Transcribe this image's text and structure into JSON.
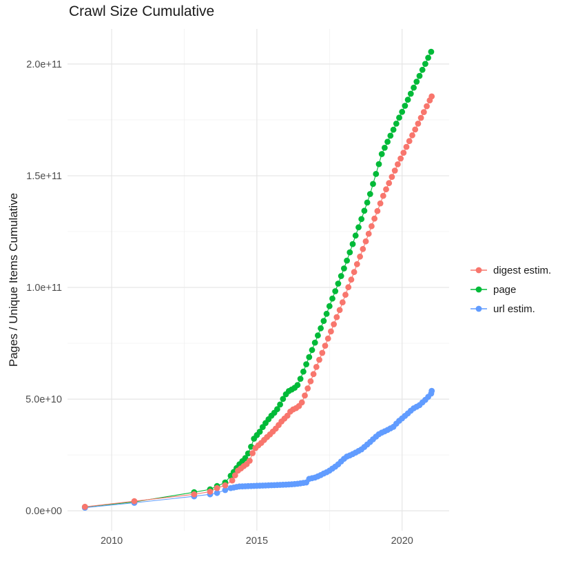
{
  "title": "Crawl Size Cumulative",
  "chart_data": {
    "type": "line",
    "title": "Crawl Size Cumulative",
    "xlabel": "",
    "ylabel": "Pages / Unique Items Cumulative",
    "value_scale": "1e9",
    "xlim": [
      2008.48,
      2021.62
    ],
    "ylim": [
      -8.9,
      215.7
    ],
    "x_ticks": [
      2010,
      2015,
      2020
    ],
    "x_tick_labels": [
      "2010",
      "2015",
      "2020"
    ],
    "x_minor_ticks": [
      2012.5,
      2017.5
    ],
    "y_ticks": [
      {
        "label": "0.0e+00",
        "value": 0
      },
      {
        "label": "5.0e+10",
        "value": 50
      },
      {
        "label": "1.0e+11",
        "value": 100
      },
      {
        "label": "1.5e+11",
        "value": 150
      },
      {
        "label": "2.0e+11",
        "value": 200
      }
    ],
    "y_minor_ticks": [
      25,
      75,
      125,
      175
    ],
    "grid": true,
    "legend_position": "right",
    "legend": [
      {
        "name": "digest estim.",
        "color": "#F8766D"
      },
      {
        "name": "page",
        "color": "#00BA38"
      },
      {
        "name": "url estim.",
        "color": "#619CFF"
      }
    ],
    "series": [
      {
        "name": "page",
        "color": "#00BA38",
        "points": [
          [
            2009.08,
            1.7
          ],
          [
            2010.78,
            4.0
          ],
          [
            2012.84,
            8.3
          ],
          [
            2013.39,
            9.6
          ],
          [
            2013.63,
            11.1
          ],
          [
            2013.91,
            12.7
          ],
          [
            2014.1,
            15.7
          ],
          [
            2014.2,
            17.4
          ],
          [
            2014.3,
            19.1
          ],
          [
            2014.4,
            20.8
          ],
          [
            2014.5,
            22.2
          ],
          [
            2014.6,
            23.6
          ],
          [
            2014.7,
            25.7
          ],
          [
            2014.8,
            28.7
          ],
          [
            2014.9,
            32.3
          ],
          [
            2015.0,
            33.9
          ],
          [
            2015.1,
            35.4
          ],
          [
            2015.2,
            37.5
          ],
          [
            2015.3,
            39.3
          ],
          [
            2015.4,
            41.0
          ],
          [
            2015.5,
            42.6
          ],
          [
            2015.6,
            43.9
          ],
          [
            2015.7,
            45.5
          ],
          [
            2015.8,
            47.6
          ],
          [
            2015.9,
            50.1
          ],
          [
            2016.0,
            52.2
          ],
          [
            2016.1,
            53.6
          ],
          [
            2016.2,
            54.3
          ],
          [
            2016.3,
            55.1
          ],
          [
            2016.4,
            56.3
          ],
          [
            2016.5,
            59.1
          ],
          [
            2016.6,
            62.3
          ],
          [
            2016.7,
            65.6
          ],
          [
            2016.8,
            68.8
          ],
          [
            2016.9,
            72.0
          ],
          [
            2017.0,
            75.3
          ],
          [
            2017.1,
            78.5
          ],
          [
            2017.2,
            81.7
          ],
          [
            2017.3,
            85.0
          ],
          [
            2017.4,
            88.2
          ],
          [
            2017.5,
            91.6
          ],
          [
            2017.6,
            95.0
          ],
          [
            2017.7,
            98.3
          ],
          [
            2017.8,
            101.7
          ],
          [
            2017.9,
            105.1
          ],
          [
            2018.0,
            108.5
          ],
          [
            2018.1,
            112.0
          ],
          [
            2018.2,
            115.7
          ],
          [
            2018.3,
            119.4
          ],
          [
            2018.4,
            123.2
          ],
          [
            2018.5,
            126.9
          ],
          [
            2018.6,
            130.6
          ],
          [
            2018.7,
            134.3
          ],
          [
            2018.8,
            138.0
          ],
          [
            2018.9,
            141.8
          ],
          [
            2019.0,
            146.3
          ],
          [
            2019.1,
            150.8
          ],
          [
            2019.2,
            155.2
          ],
          [
            2019.3,
            159.7
          ],
          [
            2019.4,
            162.5
          ],
          [
            2019.5,
            165.2
          ],
          [
            2019.6,
            167.9
          ],
          [
            2019.7,
            170.6
          ],
          [
            2019.8,
            173.3
          ],
          [
            2019.9,
            176.0
          ],
          [
            2020.0,
            178.6
          ],
          [
            2020.1,
            181.3
          ],
          [
            2020.2,
            184.0
          ],
          [
            2020.3,
            186.7
          ],
          [
            2020.4,
            189.4
          ],
          [
            2020.5,
            192.1
          ],
          [
            2020.6,
            194.7
          ],
          [
            2020.7,
            197.4
          ],
          [
            2020.8,
            200.1
          ],
          [
            2020.9,
            202.8
          ],
          [
            2021.0,
            205.5
          ]
        ]
      },
      {
        "name": "url estim.",
        "color": "#619CFF",
        "points": [
          [
            2009.08,
            1.4
          ],
          [
            2010.78,
            3.6
          ],
          [
            2012.84,
            6.5
          ],
          [
            2013.39,
            7.4
          ],
          [
            2013.63,
            8.0
          ],
          [
            2013.91,
            9.3
          ],
          [
            2014.1,
            10.2
          ],
          [
            2014.2,
            10.4
          ],
          [
            2014.3,
            10.7
          ],
          [
            2014.4,
            10.9
          ],
          [
            2014.5,
            10.95
          ],
          [
            2014.6,
            11.0
          ],
          [
            2014.7,
            11.05
          ],
          [
            2014.8,
            11.1
          ],
          [
            2014.9,
            11.15
          ],
          [
            2015.0,
            11.2
          ],
          [
            2015.1,
            11.25
          ],
          [
            2015.2,
            11.3
          ],
          [
            2015.3,
            11.35
          ],
          [
            2015.4,
            11.4
          ],
          [
            2015.5,
            11.45
          ],
          [
            2015.6,
            11.5
          ],
          [
            2015.7,
            11.56
          ],
          [
            2015.8,
            11.62
          ],
          [
            2015.9,
            11.68
          ],
          [
            2016.0,
            11.74
          ],
          [
            2016.1,
            11.8
          ],
          [
            2016.2,
            11.9
          ],
          [
            2016.3,
            12.0
          ],
          [
            2016.4,
            12.1
          ],
          [
            2016.5,
            12.3
          ],
          [
            2016.6,
            12.5
          ],
          [
            2016.7,
            12.7
          ],
          [
            2016.8,
            14.3
          ],
          [
            2016.9,
            14.6
          ],
          [
            2017.0,
            14.9
          ],
          [
            2017.1,
            15.4
          ],
          [
            2017.2,
            16.0
          ],
          [
            2017.3,
            16.7
          ],
          [
            2017.4,
            17.3
          ],
          [
            2017.5,
            18.0
          ],
          [
            2017.6,
            18.9
          ],
          [
            2017.7,
            19.8
          ],
          [
            2017.8,
            20.8
          ],
          [
            2017.9,
            22.1
          ],
          [
            2018.0,
            23.3
          ],
          [
            2018.1,
            24.3
          ],
          [
            2018.2,
            24.8
          ],
          [
            2018.3,
            25.4
          ],
          [
            2018.4,
            26.1
          ],
          [
            2018.5,
            26.8
          ],
          [
            2018.6,
            27.5
          ],
          [
            2018.7,
            28.6
          ],
          [
            2018.8,
            29.7
          ],
          [
            2018.9,
            30.8
          ],
          [
            2019.0,
            32.0
          ],
          [
            2019.1,
            33.2
          ],
          [
            2019.2,
            34.3
          ],
          [
            2019.3,
            35.0
          ],
          [
            2019.4,
            35.6
          ],
          [
            2019.5,
            36.2
          ],
          [
            2019.6,
            36.9
          ],
          [
            2019.7,
            37.6
          ],
          [
            2019.8,
            39.0
          ],
          [
            2019.9,
            40.3
          ],
          [
            2020.0,
            41.4
          ],
          [
            2020.1,
            42.5
          ],
          [
            2020.2,
            43.6
          ],
          [
            2020.3,
            44.8
          ],
          [
            2020.4,
            45.9
          ],
          [
            2020.5,
            46.6
          ],
          [
            2020.6,
            47.3
          ],
          [
            2020.7,
            48.5
          ],
          [
            2020.8,
            49.7
          ],
          [
            2020.9,
            51.0
          ],
          [
            2021.0,
            52.5
          ],
          [
            2021.02,
            53.7
          ]
        ]
      },
      {
        "name": "digest estim.",
        "color": "#F8766D",
        "points": [
          [
            2009.08,
            1.8
          ],
          [
            2010.78,
            4.3
          ],
          [
            2012.84,
            7.4
          ],
          [
            2013.39,
            8.6
          ],
          [
            2013.63,
            10.2
          ],
          [
            2013.91,
            11.4
          ],
          [
            2014.15,
            13.6
          ],
          [
            2014.25,
            15.9
          ],
          [
            2014.35,
            18.0
          ],
          [
            2014.45,
            19.0
          ],
          [
            2014.55,
            20.0
          ],
          [
            2014.65,
            20.9
          ],
          [
            2014.75,
            22.4
          ],
          [
            2014.85,
            25.8
          ],
          [
            2014.95,
            28.1
          ],
          [
            2015.05,
            29.3
          ],
          [
            2015.15,
            30.4
          ],
          [
            2015.25,
            31.7
          ],
          [
            2015.35,
            33.0
          ],
          [
            2015.45,
            34.2
          ],
          [
            2015.55,
            35.5
          ],
          [
            2015.65,
            36.8
          ],
          [
            2015.75,
            38.4
          ],
          [
            2015.85,
            40.0
          ],
          [
            2015.95,
            41.3
          ],
          [
            2016.05,
            42.6
          ],
          [
            2016.15,
            44.4
          ],
          [
            2016.25,
            45.4
          ],
          [
            2016.35,
            46.0
          ],
          [
            2016.45,
            46.9
          ],
          [
            2016.55,
            48.5
          ],
          [
            2016.65,
            51.6
          ],
          [
            2016.75,
            54.8
          ],
          [
            2016.85,
            58.0
          ],
          [
            2016.95,
            61.2
          ],
          [
            2017.05,
            64.4
          ],
          [
            2017.15,
            67.6
          ],
          [
            2017.25,
            70.7
          ],
          [
            2017.35,
            73.9
          ],
          [
            2017.45,
            77.1
          ],
          [
            2017.55,
            80.3
          ],
          [
            2017.65,
            83.5
          ],
          [
            2017.75,
            86.7
          ],
          [
            2017.85,
            89.9
          ],
          [
            2017.95,
            93.3
          ],
          [
            2018.05,
            96.7
          ],
          [
            2018.15,
            100.1
          ],
          [
            2018.25,
            103.5
          ],
          [
            2018.35,
            106.9
          ],
          [
            2018.45,
            110.4
          ],
          [
            2018.55,
            113.8
          ],
          [
            2018.65,
            117.2
          ],
          [
            2018.75,
            120.6
          ],
          [
            2018.85,
            124.0
          ],
          [
            2018.95,
            127.4
          ],
          [
            2019.05,
            130.8
          ],
          [
            2019.15,
            134.2
          ],
          [
            2019.25,
            137.6
          ],
          [
            2019.35,
            141.0
          ],
          [
            2019.45,
            143.9
          ],
          [
            2019.55,
            146.7
          ],
          [
            2019.65,
            149.5
          ],
          [
            2019.75,
            152.3
          ],
          [
            2019.85,
            155.1
          ],
          [
            2019.95,
            157.7
          ],
          [
            2020.05,
            160.3
          ],
          [
            2020.15,
            162.9
          ],
          [
            2020.25,
            165.5
          ],
          [
            2020.35,
            168.1
          ],
          [
            2020.45,
            170.7
          ],
          [
            2020.55,
            173.3
          ],
          [
            2020.65,
            175.9
          ],
          [
            2020.75,
            178.5
          ],
          [
            2020.85,
            181.1
          ],
          [
            2020.95,
            183.7
          ],
          [
            2021.02,
            185.5
          ]
        ]
      }
    ]
  }
}
